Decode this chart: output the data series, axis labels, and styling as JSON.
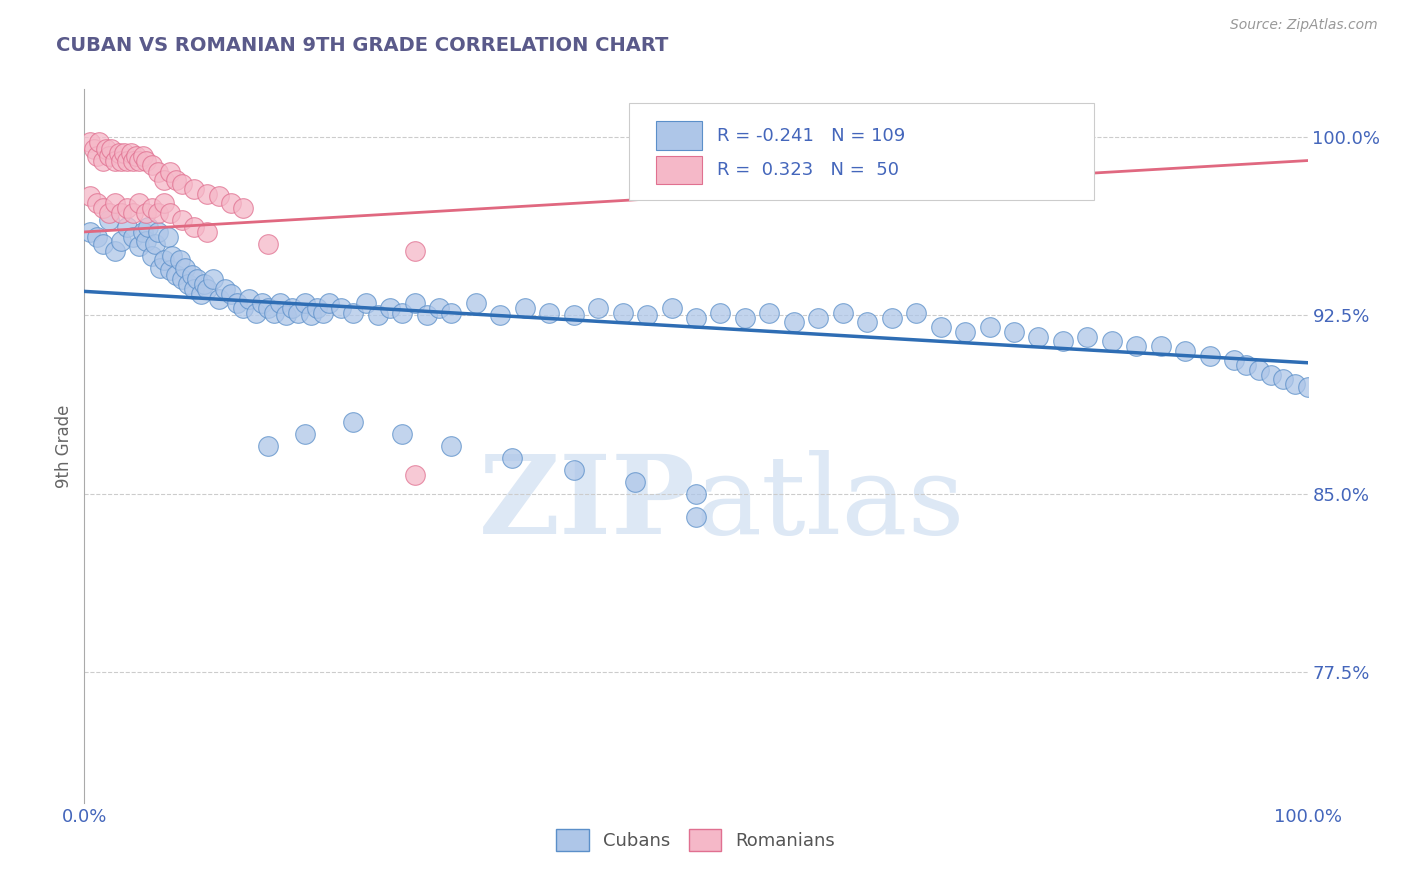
{
  "title": "CUBAN VS ROMANIAN 9TH GRADE CORRELATION CHART",
  "title_color": "#5a5a8a",
  "source_text": "Source: ZipAtlas.com",
  "ylabel": "9th Grade",
  "xlim": [
    0.0,
    1.0
  ],
  "ylim": [
    0.72,
    1.02
  ],
  "ytick_labels": [
    "77.5%",
    "85.0%",
    "92.5%",
    "100.0%"
  ],
  "ytick_values": [
    0.775,
    0.85,
    0.925,
    1.0
  ],
  "xtick_labels": [
    "0.0%",
    "100.0%"
  ],
  "xtick_values": [
    0.0,
    1.0
  ],
  "cubans_color": "#aec6e8",
  "cubans_edge": "#5b8fc9",
  "romanians_color": "#f5b8c8",
  "romanians_edge": "#e07090",
  "cubans_line_color": "#2e6db4",
  "romanians_line_color": "#e06880",
  "legend_R_cubans": "-0.241",
  "legend_N_cubans": "109",
  "legend_R_romanians": "0.323",
  "legend_N_romanians": "50",
  "label_color": "#4466bb",
  "watermark_color": "#dde8f5",
  "cubans_x": [
    0.005,
    0.01,
    0.015,
    0.02,
    0.025,
    0.03,
    0.035,
    0.04,
    0.045,
    0.048,
    0.05,
    0.052,
    0.055,
    0.058,
    0.06,
    0.062,
    0.065,
    0.068,
    0.07,
    0.072,
    0.075,
    0.078,
    0.08,
    0.082,
    0.085,
    0.088,
    0.09,
    0.092,
    0.095,
    0.098,
    0.1,
    0.105,
    0.11,
    0.115,
    0.12,
    0.125,
    0.13,
    0.135,
    0.14,
    0.145,
    0.15,
    0.155,
    0.16,
    0.165,
    0.17,
    0.175,
    0.18,
    0.185,
    0.19,
    0.195,
    0.2,
    0.21,
    0.22,
    0.23,
    0.24,
    0.25,
    0.26,
    0.27,
    0.28,
    0.29,
    0.3,
    0.32,
    0.34,
    0.36,
    0.38,
    0.4,
    0.42,
    0.44,
    0.46,
    0.48,
    0.5,
    0.52,
    0.54,
    0.56,
    0.58,
    0.6,
    0.62,
    0.64,
    0.66,
    0.68,
    0.7,
    0.72,
    0.74,
    0.76,
    0.78,
    0.8,
    0.82,
    0.84,
    0.86,
    0.88,
    0.9,
    0.92,
    0.94,
    0.95,
    0.96,
    0.97,
    0.98,
    0.99,
    1.0,
    0.5,
    0.15,
    0.18,
    0.22,
    0.26,
    0.3,
    0.35,
    0.4,
    0.45,
    0.5
  ],
  "cubans_y": [
    0.96,
    0.958,
    0.955,
    0.965,
    0.952,
    0.956,
    0.962,
    0.958,
    0.954,
    0.96,
    0.956,
    0.962,
    0.95,
    0.955,
    0.96,
    0.945,
    0.948,
    0.958,
    0.944,
    0.95,
    0.942,
    0.948,
    0.94,
    0.945,
    0.938,
    0.942,
    0.936,
    0.94,
    0.934,
    0.938,
    0.936,
    0.94,
    0.932,
    0.936,
    0.934,
    0.93,
    0.928,
    0.932,
    0.926,
    0.93,
    0.928,
    0.926,
    0.93,
    0.925,
    0.928,
    0.926,
    0.93,
    0.925,
    0.928,
    0.926,
    0.93,
    0.928,
    0.926,
    0.93,
    0.925,
    0.928,
    0.926,
    0.93,
    0.925,
    0.928,
    0.926,
    0.93,
    0.925,
    0.928,
    0.926,
    0.925,
    0.928,
    0.926,
    0.925,
    0.928,
    0.924,
    0.926,
    0.924,
    0.926,
    0.922,
    0.924,
    0.926,
    0.922,
    0.924,
    0.926,
    0.92,
    0.918,
    0.92,
    0.918,
    0.916,
    0.914,
    0.916,
    0.914,
    0.912,
    0.912,
    0.91,
    0.908,
    0.906,
    0.904,
    0.902,
    0.9,
    0.898,
    0.896,
    0.895,
    0.85,
    0.87,
    0.875,
    0.88,
    0.875,
    0.87,
    0.865,
    0.86,
    0.855,
    0.84
  ],
  "romanians_x": [
    0.005,
    0.008,
    0.01,
    0.012,
    0.015,
    0.018,
    0.02,
    0.022,
    0.025,
    0.028,
    0.03,
    0.032,
    0.035,
    0.038,
    0.04,
    0.042,
    0.045,
    0.048,
    0.05,
    0.055,
    0.06,
    0.065,
    0.07,
    0.075,
    0.08,
    0.09,
    0.1,
    0.11,
    0.12,
    0.13,
    0.005,
    0.01,
    0.015,
    0.02,
    0.025,
    0.03,
    0.035,
    0.04,
    0.045,
    0.05,
    0.055,
    0.06,
    0.065,
    0.07,
    0.08,
    0.09,
    0.1,
    0.15,
    0.27,
    0.27
  ],
  "romanians_y": [
    0.998,
    0.995,
    0.992,
    0.998,
    0.99,
    0.995,
    0.992,
    0.995,
    0.99,
    0.993,
    0.99,
    0.993,
    0.99,
    0.993,
    0.99,
    0.992,
    0.99,
    0.992,
    0.99,
    0.988,
    0.985,
    0.982,
    0.985,
    0.982,
    0.98,
    0.978,
    0.976,
    0.975,
    0.972,
    0.97,
    0.975,
    0.972,
    0.97,
    0.968,
    0.972,
    0.968,
    0.97,
    0.968,
    0.972,
    0.968,
    0.97,
    0.968,
    0.972,
    0.968,
    0.965,
    0.962,
    0.96,
    0.955,
    0.952,
    0.858
  ]
}
